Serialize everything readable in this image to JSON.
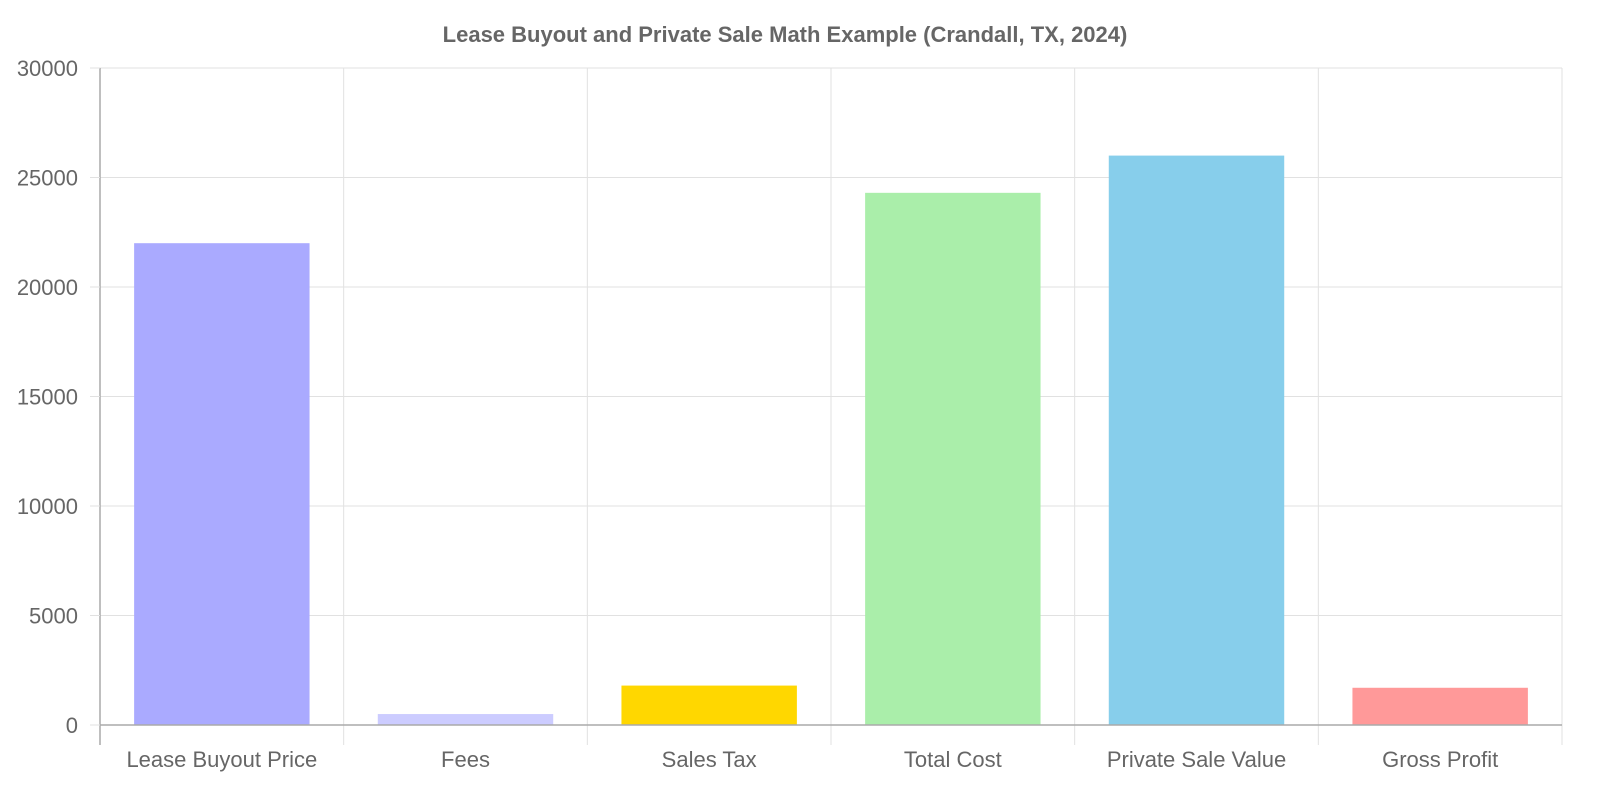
{
  "chart_data": {
    "type": "bar",
    "title": "Lease Buyout and Private Sale Math Example (Crandall, TX, 2024)",
    "categories": [
      "Lease Buyout Price",
      "Fees",
      "Sales Tax",
      "Total Cost",
      "Private Sale Value",
      "Gross Profit"
    ],
    "values": [
      22000,
      500,
      1800,
      24300,
      26000,
      1700
    ],
    "colors": [
      "#aaaaff",
      "#ccccff",
      "#ffd700",
      "#aaeeaa",
      "#87ceeb",
      "#ff9999"
    ],
    "ylim": [
      0,
      30000
    ],
    "yticks": [
      0,
      5000,
      10000,
      15000,
      20000,
      25000,
      30000
    ],
    "grid": true,
    "legend": "none"
  }
}
